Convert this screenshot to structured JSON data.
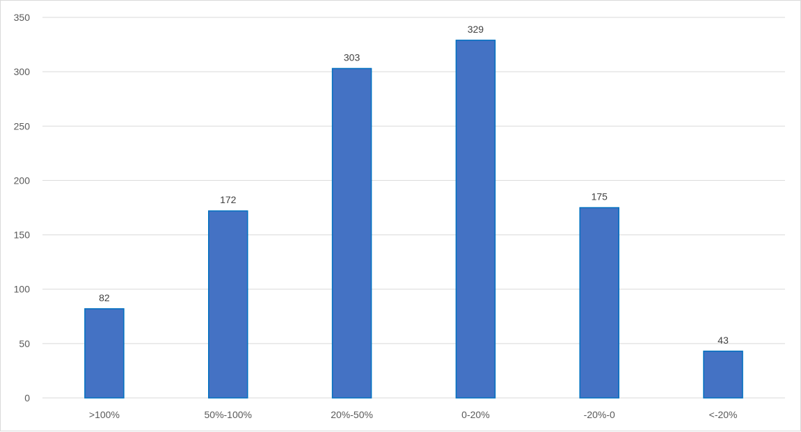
{
  "chart_data": {
    "type": "bar",
    "title": "",
    "xlabel": "",
    "ylabel": "",
    "categories": [
      ">100%",
      "50%-100%",
      "20%-50%",
      "0-20%",
      "-20%-0",
      "<-20%"
    ],
    "values": [
      82,
      172,
      303,
      329,
      175,
      43
    ],
    "data_labels": [
      "82",
      "172",
      "303",
      "329",
      "175",
      "43"
    ],
    "ylim": [
      0,
      350
    ],
    "yticks": [
      0,
      50,
      100,
      150,
      200,
      250,
      300,
      350
    ],
    "grid": true,
    "legend": "none",
    "colors": {
      "bar_fill": "#4472C4",
      "bar_stroke": "#0070C0",
      "grid": "#d9d9d9",
      "text": "#595959"
    }
  }
}
